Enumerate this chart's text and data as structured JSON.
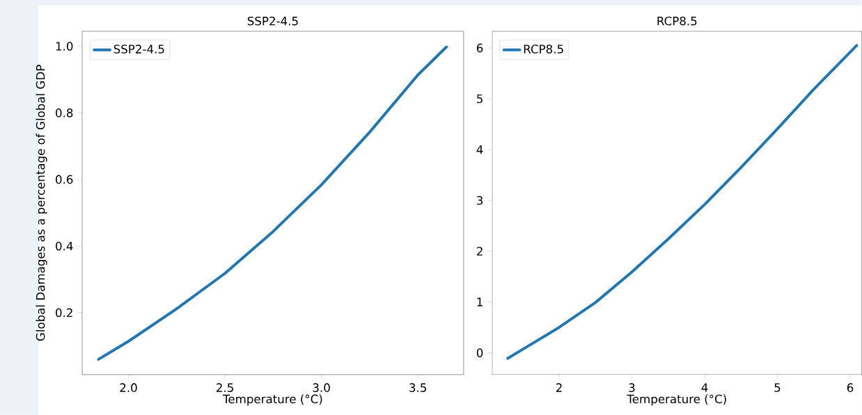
{
  "chart_data": [
    {
      "type": "line",
      "title": "SSP2-4.5",
      "xlabel": "Temperature (°C)",
      "ylabel": "Global Damages as a percentage of Global GDP",
      "series": [
        {
          "name": "SSP2-4.5",
          "color": "#1f77b4",
          "x": [
            1.845,
            2.0,
            2.25,
            2.5,
            2.75,
            3.0,
            3.25,
            3.5,
            3.648
          ],
          "values": [
            0.06,
            0.114,
            0.212,
            0.318,
            0.444,
            0.584,
            0.742,
            0.914,
            0.998
          ]
        }
      ],
      "xlim": [
        1.76,
        3.737
      ],
      "ylim": [
        0.014,
        1.045
      ],
      "xticks": [
        {
          "value": 2,
          "label": "2.0"
        },
        2.5,
        {
          "value": 3,
          "label": "3.0"
        },
        3.5
      ],
      "yticks": [
        0.2,
        0.4,
        0.6,
        0.8,
        {
          "value": 1,
          "label": "1.0"
        }
      ],
      "legend": "top left",
      "grid": false,
      "line_style": "solid"
    },
    {
      "type": "line",
      "title": "RCP8.5",
      "xlabel": "Temperature (°C)",
      "series": [
        {
          "name": "RCP8.5",
          "color": "#1f77b4",
          "x": [
            1.294,
            2,
            2.5,
            3,
            3.5,
            4,
            4.5,
            5,
            5.5,
            6.09
          ],
          "values": [
            -0.11,
            0.5,
            0.99,
            1.59,
            2.24,
            2.92,
            3.65,
            4.41,
            5.19,
            6.05
          ]
        }
      ],
      "xlim": [
        1.08,
        6.16
      ],
      "ylim": [
        -0.43,
        6.33
      ],
      "xticks": [
        2,
        3,
        4,
        5,
        6
      ],
      "yticks": [
        0,
        1,
        2,
        3,
        4,
        5,
        6
      ],
      "legend": "top left",
      "grid": false,
      "line_style": "solid"
    }
  ]
}
